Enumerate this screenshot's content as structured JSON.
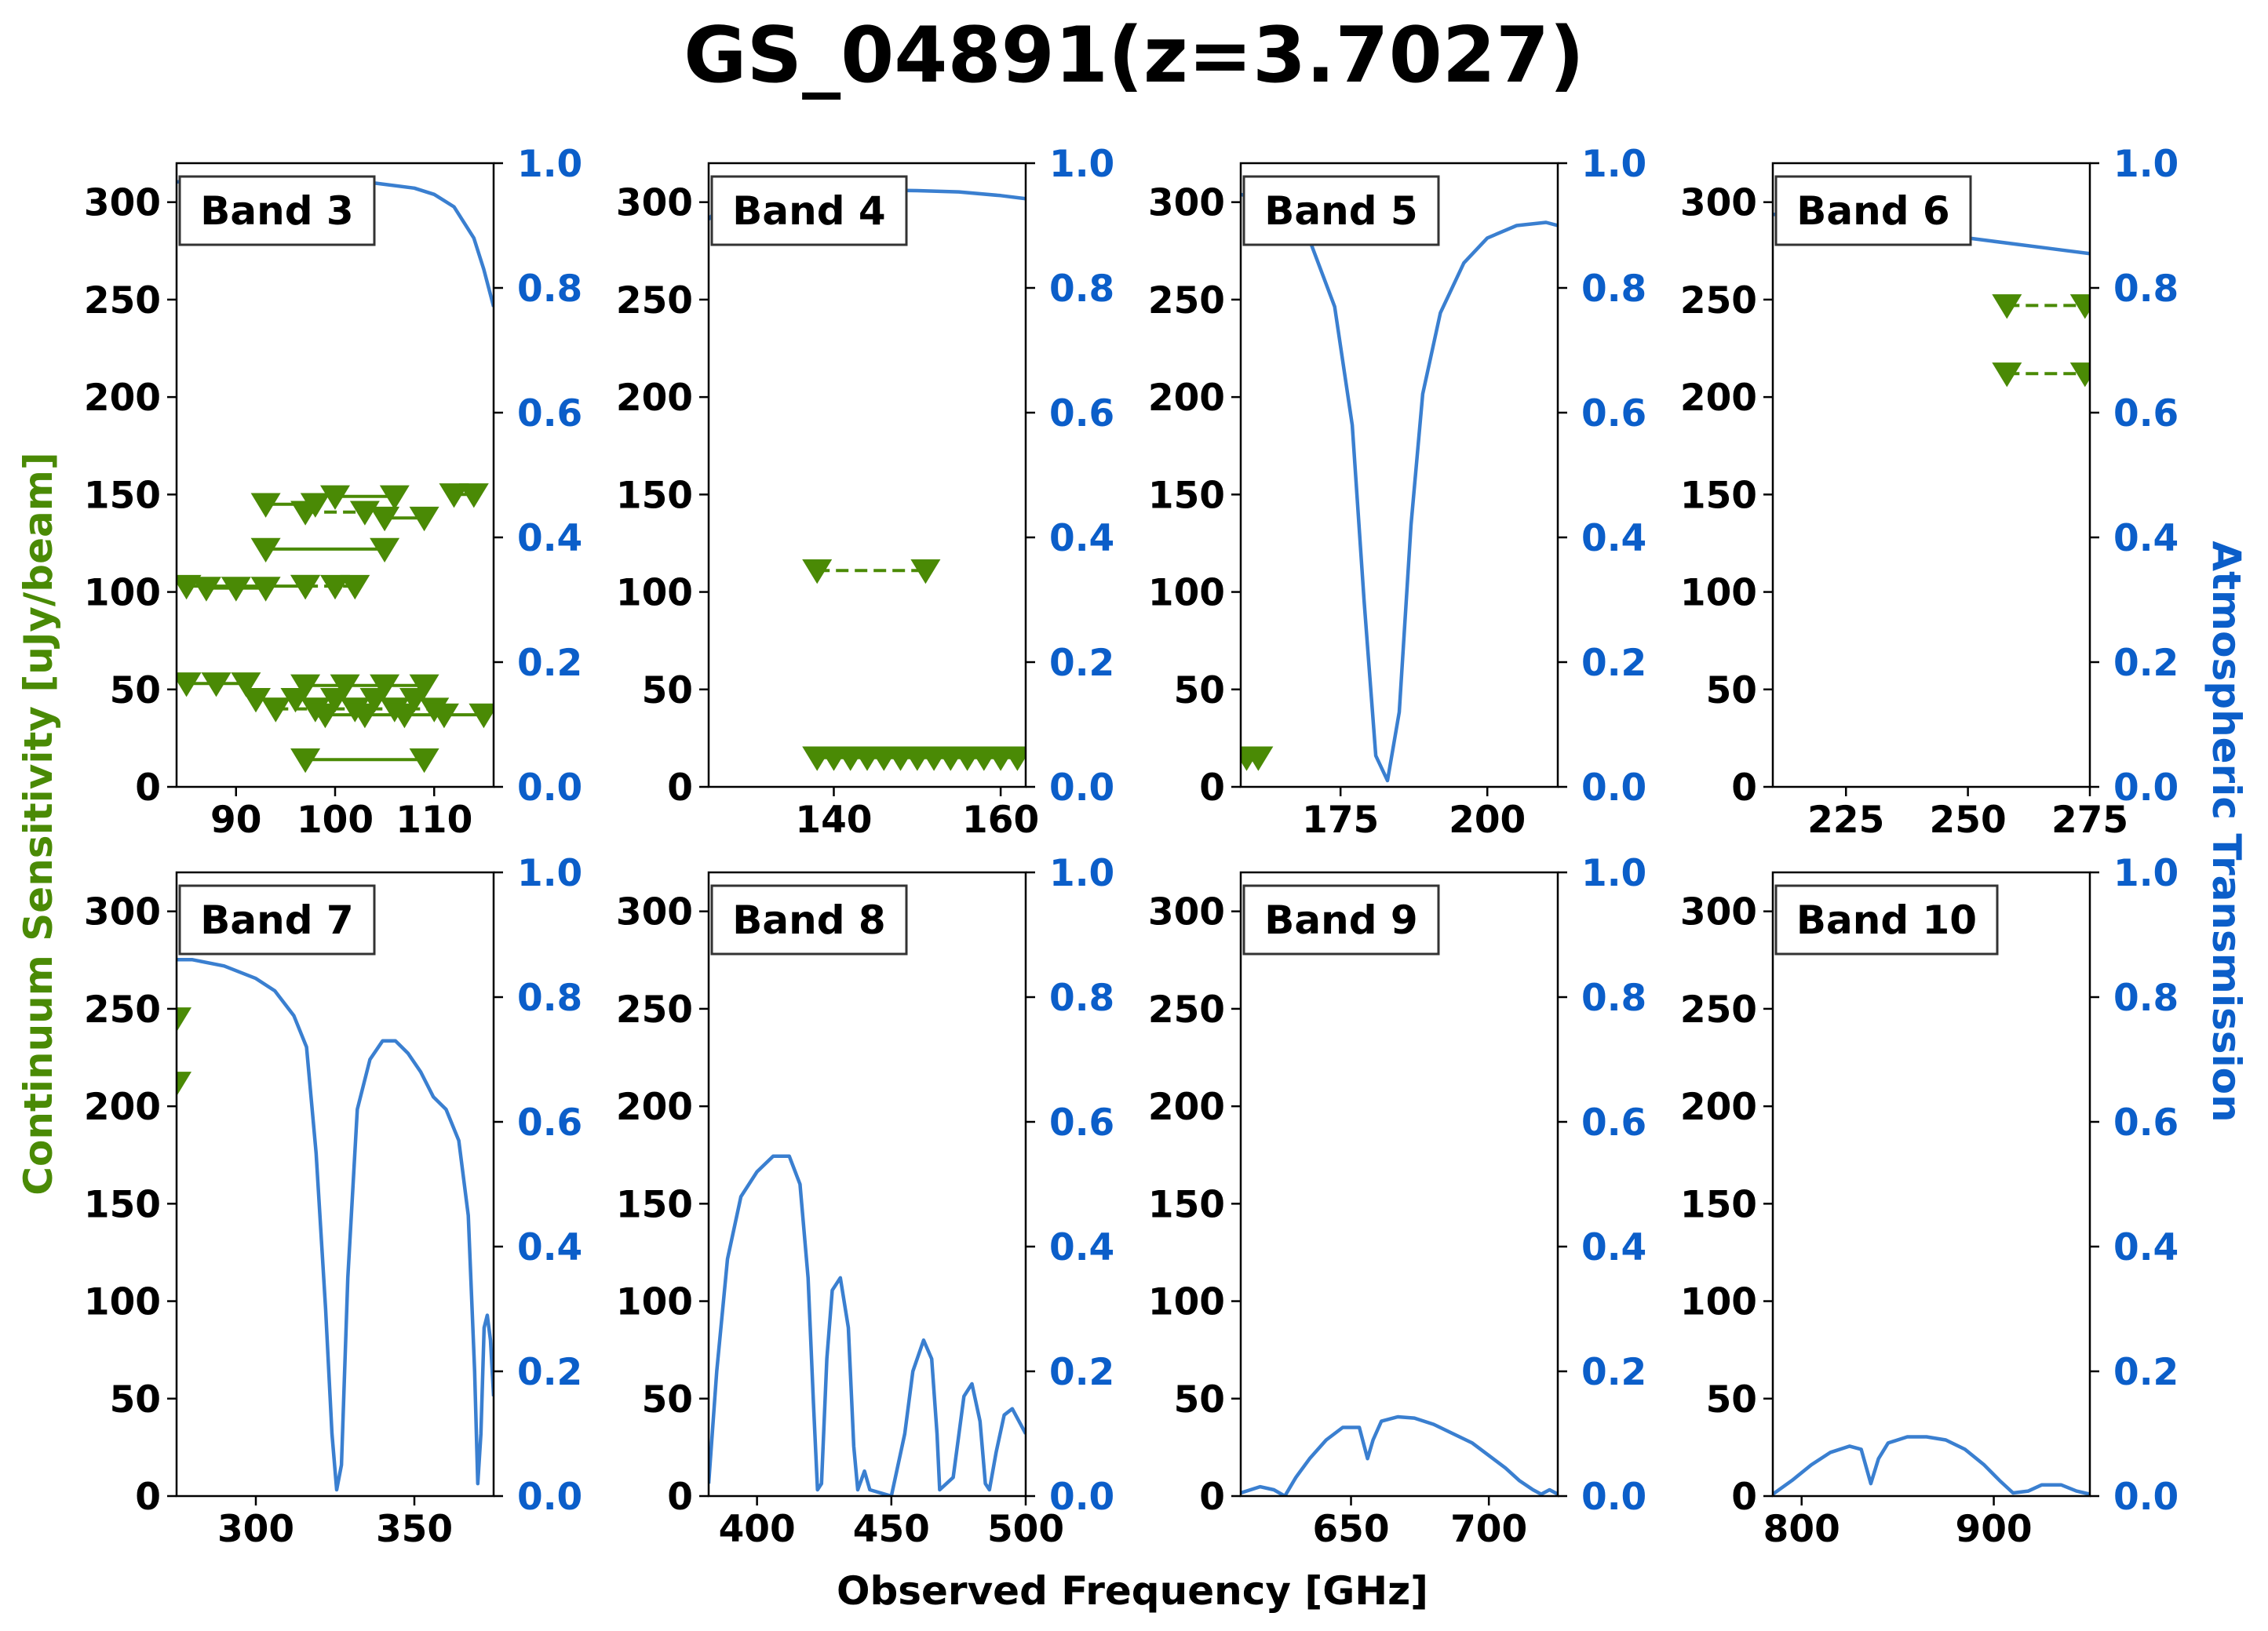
{
  "title": "GS_04891(z=3.7027)",
  "ylabel_left": "Continuum Sensitivity [uJy/beam]",
  "ylabel_right": "Atmospheric Transmission",
  "xlabel": "Observed Frequency [GHz]",
  "colors": {
    "sensitivity": "#4a8a05",
    "transmission": "#3a7fd0",
    "right_axis_text": "#0b5ec9",
    "left_label": "#4a8a05"
  },
  "chart_data": {
    "type": "scatter",
    "left_ylim": [
      0,
      320
    ],
    "left_yticks": [
      "0",
      "50",
      "100",
      "150",
      "200",
      "250",
      "300"
    ],
    "right_ylim": [
      0.0,
      1.0
    ],
    "right_yticks": [
      "0.0",
      "0.2",
      "0.4",
      "0.6",
      "0.8",
      "1.0"
    ],
    "panels": [
      {
        "label": "Band 3",
        "xlim": [
          84,
          116
        ],
        "xticks": [
          {
            "v": 90,
            "t": "90"
          },
          {
            "v": 100,
            "t": "100"
          },
          {
            "v": 110,
            "t": "110"
          }
        ],
        "upper_limits": [
          {
            "x": [
              85,
              97
            ],
            "y": 103,
            "style": "solid"
          },
          {
            "x": [
              87,
              90,
              93
            ],
            "y": 102,
            "style": "solid"
          },
          {
            "x": [
              97,
              100,
              102
            ],
            "y": 103,
            "style": "dash"
          },
          {
            "x": [
              85,
              88,
              91
            ],
            "y": 53,
            "style": "solid"
          },
          {
            "x": [
              92,
              96,
              100,
              104,
              108
            ],
            "y": 45,
            "style": "solid"
          },
          {
            "x": [
              94,
              98,
              102,
              106,
              110
            ],
            "y": 40,
            "style": "dash"
          },
          {
            "x": [
              97,
              101,
              105,
              109
            ],
            "y": 52,
            "style": "solid"
          },
          {
            "x": [
              99,
              103,
              107,
              111,
              115
            ],
            "y": 37,
            "style": "solid"
          },
          {
            "x": [
              93,
              98
            ],
            "y": 145,
            "style": "solid"
          },
          {
            "x": [
              97,
              103
            ],
            "y": 141,
            "style": "dash"
          },
          {
            "x": [
              100,
              106
            ],
            "y": 149,
            "style": "solid"
          },
          {
            "x": [
              105,
              109
            ],
            "y": 138,
            "style": "solid"
          },
          {
            "x": [
              112,
              114
            ],
            "y": 150,
            "style": "solid"
          },
          {
            "x": [
              93,
              105
            ],
            "y": 122,
            "style": "solid"
          },
          {
            "x": [
              97,
              109
            ],
            "y": 14,
            "style": "solid"
          }
        ],
        "transmission": [
          [
            84,
            0.97
          ],
          [
            90,
            0.975
          ],
          [
            96,
            0.974
          ],
          [
            100,
            0.972
          ],
          [
            104,
            0.968
          ],
          [
            108,
            0.96
          ],
          [
            110,
            0.95
          ],
          [
            112,
            0.93
          ],
          [
            114,
            0.88
          ],
          [
            115,
            0.83
          ],
          [
            116,
            0.77
          ]
        ]
      },
      {
        "label": "Band 4",
        "xlim": [
          125,
          163
        ],
        "xticks": [
          {
            "v": 140,
            "t": "140"
          },
          {
            "v": 160,
            "t": "160"
          }
        ],
        "upper_limits": [
          {
            "x": [
              138,
              151
            ],
            "y": 111,
            "style": "dash"
          },
          {
            "x": [
              138,
              140,
              142,
              144,
              146,
              148,
              150,
              152,
              154,
              156,
              158,
              160,
              162
            ],
            "y": 15,
            "style": "solid"
          }
        ],
        "transmission": [
          [
            125,
            0.91
          ],
          [
            127,
            0.94
          ],
          [
            130,
            0.948
          ],
          [
            135,
            0.952
          ],
          [
            140,
            0.955
          ],
          [
            145,
            0.957
          ],
          [
            150,
            0.956
          ],
          [
            155,
            0.954
          ],
          [
            160,
            0.948
          ],
          [
            163,
            0.943
          ]
        ]
      },
      {
        "label": "Band 5",
        "xlim": [
          158,
          212
        ],
        "xticks": [
          {
            "v": 175,
            "t": "175"
          },
          {
            "v": 200,
            "t": "200"
          }
        ],
        "upper_limits": [
          {
            "x": [
              159,
              161
            ],
            "y": 15,
            "style": "solid"
          }
        ],
        "transmission": [
          [
            158,
            0.95
          ],
          [
            162,
            0.94
          ],
          [
            166,
            0.92
          ],
          [
            170,
            0.87
          ],
          [
            174,
            0.77
          ],
          [
            177,
            0.58
          ],
          [
            179,
            0.3
          ],
          [
            181,
            0.05
          ],
          [
            183,
            0.01
          ],
          [
            185,
            0.12
          ],
          [
            187,
            0.42
          ],
          [
            189,
            0.63
          ],
          [
            192,
            0.76
          ],
          [
            196,
            0.84
          ],
          [
            200,
            0.88
          ],
          [
            205,
            0.9
          ],
          [
            210,
            0.905
          ],
          [
            212,
            0.9
          ]
        ]
      },
      {
        "label": "Band 6",
        "xlim": [
          210,
          275
        ],
        "xticks": [
          {
            "v": 225,
            "t": "225"
          },
          {
            "v": 250,
            "t": "250"
          },
          {
            "v": 275,
            "t": "275"
          }
        ],
        "upper_limits": [
          {
            "x": [
              258,
              274
            ],
            "y": 247,
            "style": "dash"
          },
          {
            "x": [
              258,
              274
            ],
            "y": 212,
            "style": "dash"
          }
        ],
        "transmission": [
          [
            210,
            0.918
          ],
          [
            220,
            0.915
          ],
          [
            230,
            0.905
          ],
          [
            240,
            0.89
          ],
          [
            250,
            0.88
          ],
          [
            255,
            0.875
          ],
          [
            260,
            0.87
          ],
          [
            265,
            0.865
          ],
          [
            270,
            0.86
          ],
          [
            275,
            0.855
          ]
        ]
      },
      {
        "label": "Band 7",
        "xlim": [
          275,
          375
        ],
        "xticks": [
          {
            "v": 300,
            "t": "300"
          },
          {
            "v": 350,
            "t": "350"
          }
        ],
        "upper_limits": [
          {
            "x": [
              275
            ],
            "y": 245,
            "style": "solid"
          },
          {
            "x": [
              275
            ],
            "y": 212,
            "style": "solid"
          }
        ],
        "transmission": [
          [
            275,
            0.86
          ],
          [
            280,
            0.86
          ],
          [
            290,
            0.85
          ],
          [
            300,
            0.83
          ],
          [
            306,
            0.81
          ],
          [
            312,
            0.77
          ],
          [
            316,
            0.72
          ],
          [
            319,
            0.55
          ],
          [
            322,
            0.3
          ],
          [
            324,
            0.1
          ],
          [
            325.5,
            0.01
          ],
          [
            327,
            0.05
          ],
          [
            329,
            0.35
          ],
          [
            332,
            0.62
          ],
          [
            336,
            0.7
          ],
          [
            340,
            0.73
          ],
          [
            344,
            0.73
          ],
          [
            348,
            0.71
          ],
          [
            352,
            0.68
          ],
          [
            356,
            0.64
          ],
          [
            360,
            0.62
          ],
          [
            364,
            0.57
          ],
          [
            367,
            0.45
          ],
          [
            369,
            0.2
          ],
          [
            370,
            0.02
          ],
          [
            371,
            0.1
          ],
          [
            372,
            0.27
          ],
          [
            373,
            0.29
          ],
          [
            374,
            0.25
          ],
          [
            375,
            0.16
          ]
        ]
      },
      {
        "label": "Band 8",
        "xlim": [
          382,
          500
        ],
        "xticks": [
          {
            "v": 400,
            "t": "400"
          },
          {
            "v": 450,
            "t": "450"
          },
          {
            "v": 500,
            "t": "500"
          }
        ],
        "upper_limits": [],
        "transmission": [
          [
            382,
            0.02
          ],
          [
            385,
            0.2
          ],
          [
            389,
            0.38
          ],
          [
            394,
            0.48
          ],
          [
            400,
            0.52
          ],
          [
            406,
            0.545
          ],
          [
            412,
            0.545
          ],
          [
            416,
            0.5
          ],
          [
            419,
            0.35
          ],
          [
            421,
            0.15
          ],
          [
            422.5,
            0.01
          ],
          [
            424,
            0.02
          ],
          [
            426,
            0.22
          ],
          [
            428,
            0.33
          ],
          [
            431,
            0.35
          ],
          [
            434,
            0.27
          ],
          [
            436,
            0.08
          ],
          [
            437.5,
            0.01
          ],
          [
            440,
            0.04
          ],
          [
            442,
            0.01
          ],
          [
            450,
            0.0
          ],
          [
            455,
            0.1
          ],
          [
            458,
            0.2
          ],
          [
            462,
            0.25
          ],
          [
            465,
            0.22
          ],
          [
            467,
            0.1
          ],
          [
            468,
            0.01
          ],
          [
            473,
            0.03
          ],
          [
            477,
            0.16
          ],
          [
            480,
            0.18
          ],
          [
            483,
            0.12
          ],
          [
            485,
            0.02
          ],
          [
            486.5,
            0.01
          ],
          [
            489,
            0.07
          ],
          [
            492,
            0.13
          ],
          [
            495,
            0.14
          ],
          [
            500,
            0.1
          ]
        ]
      },
      {
        "label": "Band 9",
        "xlim": [
          610,
          725
        ],
        "xticks": [
          {
            "v": 650,
            "t": "650"
          },
          {
            "v": 700,
            "t": "700"
          }
        ],
        "upper_limits": [],
        "transmission": [
          [
            610,
            0.005
          ],
          [
            617,
            0.015
          ],
          [
            622,
            0.01
          ],
          [
            626,
            0.0
          ],
          [
            630,
            0.03
          ],
          [
            635,
            0.06
          ],
          [
            641,
            0.09
          ],
          [
            647,
            0.11
          ],
          [
            653,
            0.11
          ],
          [
            656,
            0.06
          ],
          [
            658,
            0.09
          ],
          [
            661,
            0.12
          ],
          [
            667,
            0.127
          ],
          [
            673,
            0.125
          ],
          [
            680,
            0.115
          ],
          [
            687,
            0.1
          ],
          [
            694,
            0.085
          ],
          [
            700,
            0.065
          ],
          [
            706,
            0.045
          ],
          [
            711,
            0.025
          ],
          [
            716,
            0.01
          ],
          [
            719,
            0.003
          ],
          [
            722,
            0.01
          ],
          [
            725,
            0.003
          ]
        ]
      },
      {
        "label": "Band 10",
        "xlim": [
          785,
          950
        ],
        "xticks": [
          {
            "v": 800,
            "t": "800"
          },
          {
            "v": 900,
            "t": "900"
          }
        ],
        "upper_limits": [],
        "transmission": [
          [
            785,
            0.003
          ],
          [
            795,
            0.025
          ],
          [
            805,
            0.05
          ],
          [
            815,
            0.07
          ],
          [
            825,
            0.08
          ],
          [
            831,
            0.075
          ],
          [
            836,
            0.02
          ],
          [
            840,
            0.06
          ],
          [
            845,
            0.085
          ],
          [
            855,
            0.095
          ],
          [
            865,
            0.095
          ],
          [
            875,
            0.09
          ],
          [
            885,
            0.075
          ],
          [
            895,
            0.05
          ],
          [
            903,
            0.025
          ],
          [
            910,
            0.005
          ],
          [
            918,
            0.008
          ],
          [
            925,
            0.018
          ],
          [
            935,
            0.018
          ],
          [
            943,
            0.008
          ],
          [
            950,
            0.003
          ]
        ]
      }
    ]
  }
}
